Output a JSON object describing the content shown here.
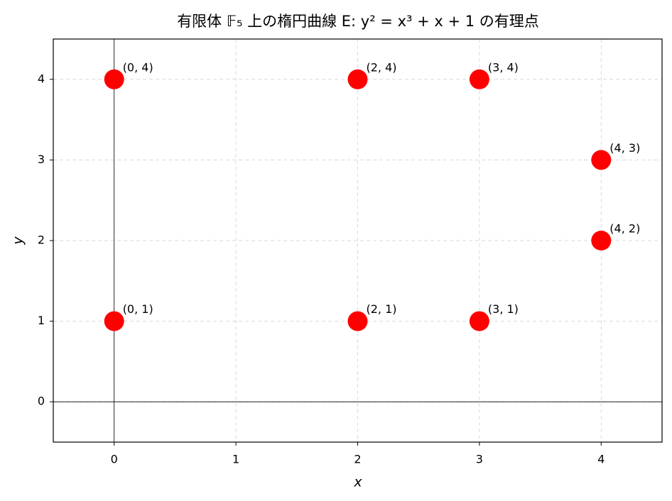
{
  "chart_data": {
    "type": "scatter",
    "title": "有限体 𝔽₅ 上の楕円曲線 E: y² = x³ + x + 1 の有理点",
    "x_label": "x",
    "y_label": "y",
    "x": [
      0,
      0,
      2,
      2,
      3,
      3,
      4,
      4
    ],
    "values": [
      1,
      4,
      1,
      4,
      1,
      4,
      2,
      3
    ],
    "value_labels": [
      "(0, 1)",
      "(0, 4)",
      "(2, 1)",
      "(2, 4)",
      "(3, 1)",
      "(3, 4)",
      "(4, 2)",
      "(4, 3)"
    ],
    "color": "#ff0000",
    "xlim": [
      -0.5,
      4.5
    ],
    "ylim": [
      -0.5,
      4.5
    ],
    "xticks": [
      0,
      1,
      2,
      3,
      4
    ],
    "yticks": [
      0,
      1,
      2,
      3,
      4
    ],
    "grid": true
  }
}
